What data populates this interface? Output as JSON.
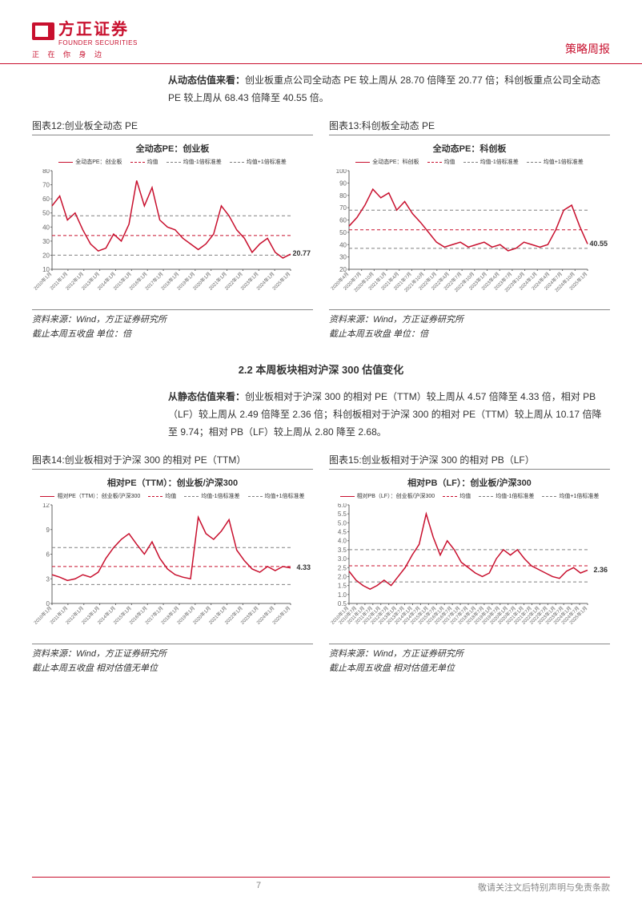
{
  "header": {
    "company_cn": "方正证券",
    "company_en": "FOUNDER SECURITIES",
    "tagline": "正 在 你 身 边",
    "report_type": "策略周报"
  },
  "intro1": {
    "lead": "从动态估值来看：",
    "body": "创业板重点公司全动态 PE 较上周从 28.70 倍降至 20.77 倍；科创板重点公司全动态 PE 较上周从 68.43 倍降至 40.55 倍。"
  },
  "chart12": {
    "caption": "图表12:创业板全动态 PE",
    "title": "全动态PE：创业板",
    "legend": [
      "全动态PE：创业板",
      "均值",
      "均值-1倍标准差",
      "均值+1倍标准差"
    ],
    "legend_colors": [
      "#c8102e",
      "#c8102e",
      "#808080",
      "#808080"
    ],
    "legend_dash": [
      "solid",
      "dashed",
      "dashed",
      "dashed"
    ],
    "ylim": [
      10,
      80
    ],
    "ytick_step": 10,
    "xlabels": [
      "2010年1月",
      "2011年1月",
      "2012年1月",
      "2013年1月",
      "2014年1月",
      "2015年1月",
      "2016年1月",
      "2017年1月",
      "2018年1月",
      "2019年1月",
      "2020年1月",
      "2021年1月",
      "2022年1月",
      "2023年1月",
      "2024年1月",
      "2025年1月"
    ],
    "mean": 34,
    "band_low": 20,
    "band_high": 48,
    "series": [
      55,
      62,
      45,
      50,
      38,
      28,
      23,
      25,
      35,
      30,
      42,
      73,
      55,
      68,
      45,
      40,
      38,
      32,
      28,
      24,
      28,
      35,
      55,
      48,
      38,
      32,
      22,
      28,
      32,
      22,
      18,
      20.77
    ],
    "end_label": "20.77",
    "source1": "资料来源：Wind，方正证券研究所",
    "source2": "截止本周五收盘 单位：倍"
  },
  "chart13": {
    "caption": "图表13:科创板全动态 PE",
    "title": "全动态PE：科创板",
    "legend": [
      "全动态PE：科创板",
      "均值",
      "均值-1倍标准差",
      "均值+1倍标准差"
    ],
    "legend_colors": [
      "#c8102e",
      "#c8102e",
      "#808080",
      "#808080"
    ],
    "legend_dash": [
      "solid",
      "dashed",
      "dashed",
      "dashed"
    ],
    "ylim": [
      20,
      100
    ],
    "ytick_step": 10,
    "xlabels": [
      "2020年4月",
      "2020年7月",
      "2020年10月",
      "2021年1月",
      "2021年4月",
      "2021年7月",
      "2021年10月",
      "2022年1月",
      "2022年4月",
      "2022年7月",
      "2022年10月",
      "2023年1月",
      "2023年4月",
      "2023年7月",
      "2023年10月",
      "2024年1月",
      "2024年4月",
      "2024年7月",
      "2024年10月",
      "2025年1月"
    ],
    "mean": 52,
    "band_low": 37,
    "band_high": 68,
    "series": [
      55,
      62,
      72,
      85,
      78,
      82,
      68,
      75,
      65,
      58,
      50,
      42,
      38,
      40,
      42,
      38,
      40,
      42,
      38,
      40,
      35,
      37,
      42,
      40,
      38,
      40,
      52,
      68,
      72,
      55,
      40.55
    ],
    "end_label": "40.55",
    "source1": "资料来源：Wind，方正证券研究所",
    "source2": "截止本周五收盘 单位：倍"
  },
  "section22": "2.2 本周板块相对沪深 300 估值变化",
  "intro2": {
    "lead": "从静态估值来看：",
    "body": "创业板相对于沪深 300 的相对 PE（TTM）较上周从 4.57 倍降至 4.33 倍，相对 PB（LF）较上周从 2.49 倍降至 2.36 倍；科创板相对于沪深 300 的相对 PE（TTM）较上周从 10.17 倍降至 9.74；相对 PB（LF）较上周从 2.80 降至 2.68。"
  },
  "chart14": {
    "caption": "图表14:创业板相对于沪深 300 的相对 PE（TTM）",
    "title": "相对PE（TTM）：创业板/沪深300",
    "legend": [
      "相对PE（TTM）：创业板/沪深300",
      "均值",
      "均值-1倍标准差",
      "均值+1倍标准差"
    ],
    "legend_colors": [
      "#c8102e",
      "#c8102e",
      "#808080",
      "#808080"
    ],
    "legend_dash": [
      "solid",
      "dashed",
      "dashed",
      "dashed"
    ],
    "ylim": [
      0,
      12
    ],
    "ytick_step": 3,
    "xlabels": [
      "2010年1月",
      "2011年1月",
      "2012年1月",
      "2013年1月",
      "2014年1月",
      "2015年1月",
      "2016年1月",
      "2017年1月",
      "2018年1月",
      "2019年1月",
      "2020年1月",
      "2021年1月",
      "2022年1月",
      "2023年1月",
      "2024年1月",
      "2025年1月"
    ],
    "mean": 4.5,
    "band_low": 2.3,
    "band_high": 6.8,
    "series": [
      3.5,
      3.2,
      2.8,
      3.0,
      3.5,
      3.2,
      3.8,
      5.5,
      6.8,
      7.8,
      8.5,
      7.2,
      6.0,
      7.5,
      5.5,
      4.2,
      3.5,
      3.2,
      3.0,
      10.5,
      8.5,
      7.8,
      8.8,
      10.2,
      6.5,
      5.2,
      4.2,
      3.8,
      4.5,
      4.0,
      4.5,
      4.33
    ],
    "end_label": "4.33",
    "source1": "资料来源：Wind，方正证券研究所",
    "source2": "截止本周五收盘 相对估值无单位"
  },
  "chart15": {
    "caption": "图表15:创业板相对于沪深 300 的相对 PB（LF）",
    "title": "相对PB（LF）：创业板/沪深300",
    "legend": [
      "相对PB（LF）：创业板/沪深300",
      "均值",
      "均值-1倍标准差",
      "均值+1倍标准差"
    ],
    "legend_colors": [
      "#c8102e",
      "#c8102e",
      "#808080",
      "#808080"
    ],
    "legend_dash": [
      "solid",
      "dashed",
      "dashed",
      "dashed"
    ],
    "ylim": [
      0.5,
      6.0
    ],
    "ytick_step": 0.5,
    "xlabels": [
      "2010年1月",
      "2010年7月",
      "2011年1月",
      "2011年7月",
      "2012年1月",
      "2012年7月",
      "2013年1月",
      "2013年7月",
      "2014年1月",
      "2014年7月",
      "2015年1月",
      "2015年7月",
      "2016年1月",
      "2016年7月",
      "2017年1月",
      "2017年7月",
      "2018年1月",
      "2018年7月",
      "2019年1月",
      "2019年7月",
      "2020年1月",
      "2020年7月",
      "2021年1月",
      "2021年7月",
      "2022年1月",
      "2022年7月",
      "2023年1月",
      "2023年7月",
      "2024年1月",
      "2024年7月",
      "2025年1月"
    ],
    "mean": 2.6,
    "band_low": 1.7,
    "band_high": 3.5,
    "series": [
      2.3,
      1.8,
      1.5,
      1.3,
      1.5,
      1.8,
      1.5,
      2.0,
      2.5,
      3.2,
      3.8,
      5.5,
      4.2,
      3.2,
      4.0,
      3.5,
      2.8,
      2.5,
      2.2,
      2.0,
      2.2,
      3.0,
      3.5,
      3.2,
      3.5,
      3.0,
      2.6,
      2.4,
      2.2,
      2.0,
      1.9,
      2.3,
      2.5,
      2.2,
      2.36
    ],
    "end_label": "2.36",
    "source1": "资料来源：Wind，方正证券研究所",
    "source2": "截止本周五收盘 相对估值无单位"
  },
  "footer": {
    "page": "7",
    "disclaimer": "敬请关注文后特别声明与免责条款"
  },
  "colors": {
    "brand": "#c8102e",
    "grid": "#d0d0d0",
    "axis": "#666"
  }
}
